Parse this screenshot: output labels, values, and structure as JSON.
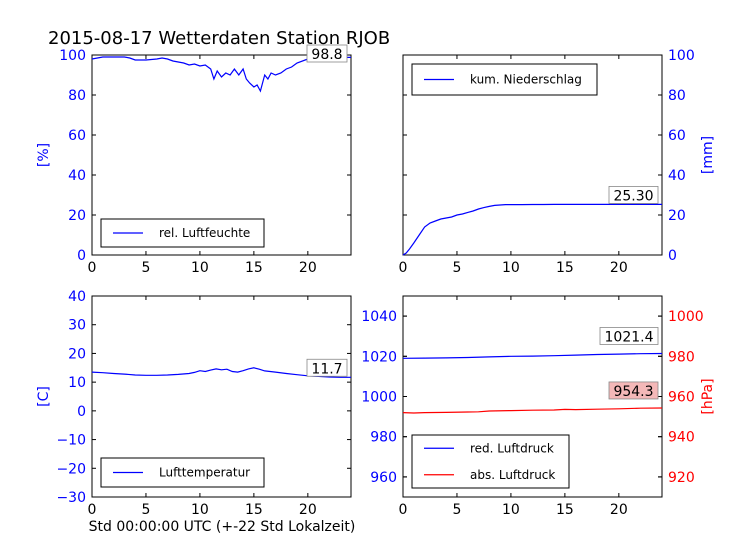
{
  "figure": {
    "title": "2015-08-17 Wetterdaten Station RJOB",
    "xlabel": "Std 00:00:00 UTC (+-22 Std Lokalzeit)"
  },
  "colors": {
    "blue": "#0000ff",
    "red": "#ff0000",
    "black": "#000000",
    "annotation_box_fill": "#ffffff",
    "annotation_box_fill_red": "#f4b8b8"
  },
  "chart_data": [
    {
      "type": "line",
      "panel": "top-left",
      "ylabel": "[%]",
      "ylabel_side": "left",
      "ylabel_color": "#0000ff",
      "xlim": [
        0,
        24
      ],
      "ylim": [
        0,
        100
      ],
      "xticks": [
        0,
        5,
        10,
        15,
        20
      ],
      "yticks": [
        0,
        20,
        40,
        60,
        80,
        100
      ],
      "tick_color": "#0000ff",
      "legend_position": "lower-left",
      "last_value_label": "98.8",
      "series": [
        {
          "name": "rel. Luftfeuchte",
          "color": "#0000ff",
          "x": [
            0,
            0.5,
            1,
            2,
            3,
            3.5,
            4,
            5,
            6,
            6.5,
            7,
            7.5,
            8,
            8.5,
            9,
            9.5,
            10,
            10.5,
            11,
            11.3,
            11.6,
            12,
            12.4,
            12.8,
            13.2,
            13.6,
            14,
            14.3,
            14.6,
            15,
            15.3,
            15.6,
            16,
            16.3,
            16.6,
            17,
            17.5,
            18,
            18.5,
            19,
            20,
            21,
            22,
            23,
            24
          ],
          "y": [
            98,
            98.5,
            99,
            99,
            99,
            98.5,
            97.5,
            97.5,
            98,
            98.5,
            98,
            97,
            96.5,
            96,
            95,
            95.5,
            94.5,
            95,
            93,
            88,
            92,
            89,
            91,
            90,
            93,
            90,
            93,
            88,
            86,
            84,
            85,
            82,
            90,
            88,
            91,
            90,
            91,
            93,
            94,
            96,
            98,
            98.5,
            98.8,
            98.8,
            98.8
          ]
        }
      ]
    },
    {
      "type": "line",
      "panel": "top-right",
      "ylabel": "[mm]",
      "ylabel_side": "right",
      "ylabel_color": "#0000ff",
      "xlim": [
        0,
        24
      ],
      "ylim": [
        0,
        100
      ],
      "xticks": [
        0,
        5,
        10,
        15,
        20
      ],
      "yticks": [
        0,
        20,
        40,
        60,
        80,
        100
      ],
      "tick_color": "#0000ff",
      "legend_position": "upper-left",
      "last_value_label": "25.30",
      "series": [
        {
          "name": "kum. Niederschlag",
          "color": "#0000ff",
          "x": [
            0,
            0.3,
            0.6,
            1,
            1.5,
            2,
            2.5,
            3,
            3.5,
            4,
            4.5,
            5,
            5.5,
            6,
            6.5,
            7,
            7.5,
            8,
            8.5,
            9,
            9.5,
            10,
            11,
            12,
            13,
            14,
            15,
            16,
            18,
            20,
            22,
            24
          ],
          "y": [
            0,
            1,
            3,
            6,
            10,
            14,
            16,
            17,
            18,
            18.5,
            19,
            20,
            20.5,
            21.3,
            22,
            23,
            23.7,
            24.3,
            24.8,
            25,
            25.2,
            25.2,
            25.2,
            25.25,
            25.25,
            25.3,
            25.3,
            25.3,
            25.3,
            25.3,
            25.3,
            25.3
          ]
        }
      ]
    },
    {
      "type": "line",
      "panel": "bottom-left",
      "ylabel": "[C]",
      "ylabel_side": "left",
      "ylabel_color": "#0000ff",
      "xlim": [
        0,
        24
      ],
      "ylim": [
        -30,
        40
      ],
      "xticks": [
        0,
        5,
        10,
        15,
        20
      ],
      "yticks": [
        -30,
        -20,
        -10,
        0,
        10,
        20,
        30,
        40
      ],
      "tick_color": "#0000ff",
      "legend_position": "lower-left",
      "last_value_label": "11.7",
      "series": [
        {
          "name": "Lufttemperatur",
          "color": "#0000ff",
          "x": [
            0,
            1,
            2,
            3,
            4,
            5,
            6,
            7,
            8,
            9,
            9.5,
            10,
            10.5,
            11,
            11.5,
            12,
            12.5,
            13,
            13.5,
            14,
            14.5,
            15,
            15.5,
            16,
            17,
            18,
            19,
            20,
            21,
            22,
            23,
            24
          ],
          "y": [
            13.5,
            13.3,
            13,
            12.8,
            12.5,
            12.4,
            12.4,
            12.5,
            12.7,
            13,
            13.4,
            14,
            13.7,
            14.2,
            14.6,
            14.3,
            14.5,
            13.7,
            13.5,
            14,
            14.6,
            15,
            14.5,
            13.9,
            13.5,
            13,
            12.6,
            12.2,
            12,
            11.8,
            11.7,
            11.7
          ]
        }
      ]
    },
    {
      "type": "line",
      "panel": "bottom-right",
      "ylabel": "[hPa]",
      "ylabel_side": "right",
      "ylabel_color": "#ff0000",
      "xlim": [
        0,
        24
      ],
      "ylim_left": [
        950,
        1050
      ],
      "ylim_right": [
        910,
        1010
      ],
      "xticks": [
        0,
        5,
        10,
        15,
        20
      ],
      "yticks_left": [
        960,
        980,
        1000,
        1020,
        1040
      ],
      "yticks_right": [
        920,
        940,
        960,
        980,
        1000
      ],
      "tick_color_left": "#0000ff",
      "tick_color_right": "#ff0000",
      "legend_position": "lower-left",
      "series": [
        {
          "name": "red. Luftdruck",
          "color": "#0000ff",
          "axis": "left",
          "last_value_label": "1021.4",
          "x": [
            0,
            2,
            4,
            6,
            8,
            10,
            12,
            14,
            16,
            18,
            20,
            22,
            24
          ],
          "y": [
            1019,
            1019.1,
            1019.2,
            1019.4,
            1019.7,
            1020,
            1020.1,
            1020.3,
            1020.6,
            1020.9,
            1021.1,
            1021.3,
            1021.4
          ]
        },
        {
          "name": "abs. Luftdruck",
          "color": "#ff0000",
          "axis": "right",
          "last_value_label": "954.3",
          "x": [
            0,
            1,
            2,
            4,
            6,
            7,
            8,
            10,
            12,
            14,
            15,
            16,
            18,
            20,
            22,
            24
          ],
          "y": [
            952,
            951.8,
            952,
            952.1,
            952.3,
            952.4,
            952.8,
            953,
            953.2,
            953.3,
            953.6,
            953.5,
            953.7,
            953.9,
            954.2,
            954.3
          ]
        }
      ]
    }
  ]
}
